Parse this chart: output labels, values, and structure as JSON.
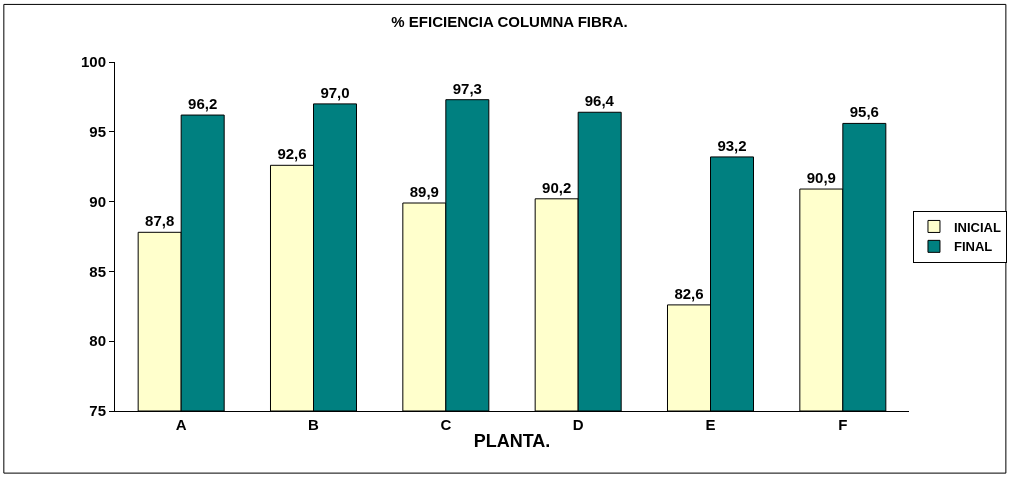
{
  "chart_data": {
    "type": "bar",
    "title": "% EFICIENCIA COLUMNA FIBRA.",
    "xlabel": "PLANTA.",
    "categories": [
      "A",
      "B",
      "C",
      "D",
      "E",
      "F"
    ],
    "series": [
      {
        "name": "INICIAL",
        "color": "#ffffcc",
        "values": [
          87.8,
          92.6,
          89.9,
          90.2,
          82.6,
          90.9
        ],
        "value_labels": [
          "87,8",
          "92,6",
          "89,9",
          "90,2",
          "82,6",
          "90,9"
        ]
      },
      {
        "name": "FINAL",
        "color": "#008080",
        "values": [
          96.2,
          97.0,
          97.3,
          96.4,
          93.2,
          95.6
        ],
        "value_labels": [
          "96,2",
          "97,0",
          "97,3",
          "96,4",
          "93,2",
          "95,6"
        ]
      }
    ],
    "ylim": [
      75,
      100
    ],
    "yticks": [
      75,
      80,
      85,
      90,
      95,
      100
    ],
    "legend": "right"
  }
}
